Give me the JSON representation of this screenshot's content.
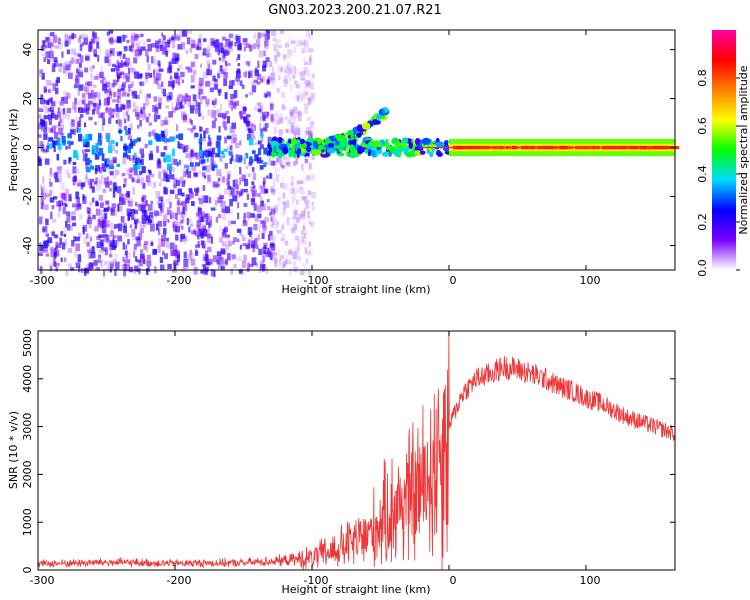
{
  "title": "GN03.2023.200.21.07.R21",
  "chart_data": [
    {
      "type": "heatmap",
      "xlabel": "Height of straight line (km)",
      "ylabel": "Frequency (Hz)",
      "xlim": [
        -300,
        165
      ],
      "ylim": [
        -50,
        48
      ],
      "xticks": [
        -300,
        -200,
        -100,
        0,
        100
      ],
      "yticks": [
        -40,
        -20,
        0,
        20,
        40
      ],
      "colorbar": {
        "label": "Normalized spectral amplitude",
        "range": [
          0,
          1
        ],
        "ticks": [
          0.0,
          0.2,
          0.4,
          0.6,
          0.8
        ],
        "colormap": [
          "#ffffff",
          "#7b00ff",
          "#0000ff",
          "#00d9ff",
          "#00ff00",
          "#ffff00",
          "#ff8000",
          "#ff0000",
          "#ff00a0"
        ]
      },
      "features": [
        {
          "name": "broadband noise",
          "x_range": [
            -300,
            -110
          ],
          "freq_range": [
            -50,
            48
          ],
          "amplitude": 0.1
        },
        {
          "name": "rising branch",
          "x": [
            -110,
            -80,
            -60,
            -45
          ],
          "freq": [
            -1,
            3,
            8,
            15
          ],
          "amplitude": 0.35
        },
        {
          "name": "steady tone",
          "x_range": [
            0,
            165
          ],
          "freq": 0,
          "amplitude": 0.9
        }
      ]
    },
    {
      "type": "line",
      "xlabel": "Height of straight line (km)",
      "ylabel": "SNR (10 * v/v)",
      "xlim": [
        -300,
        165
      ],
      "ylim": [
        0,
        5000
      ],
      "xticks": [
        -300,
        -200,
        -100,
        0,
        100
      ],
      "yticks": [
        0,
        1000,
        2000,
        3000,
        4000,
        5000
      ],
      "color": "#ef3535",
      "series": [
        {
          "x": [
            -300,
            -250,
            -200,
            -150,
            -120,
            -100,
            -80,
            -60,
            -50,
            -40,
            -30,
            -20,
            -10,
            0,
            10,
            20,
            30,
            40,
            50,
            60,
            70,
            80,
            90,
            100,
            110,
            120,
            130,
            140,
            150,
            165
          ],
          "y": [
            130,
            160,
            140,
            150,
            200,
            250,
            450,
            700,
            1000,
            1300,
            1500,
            1700,
            2300,
            3000,
            3700,
            4000,
            4100,
            4250,
            4200,
            4100,
            4000,
            3850,
            3750,
            3600,
            3500,
            3350,
            3200,
            3100,
            3000,
            2850
          ]
        }
      ]
    }
  ]
}
